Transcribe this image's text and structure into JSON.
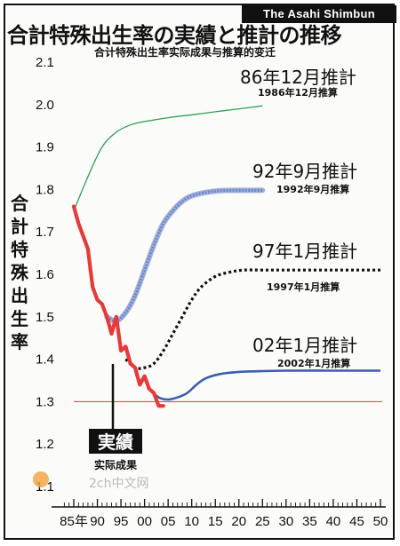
{
  "brand": "The Asahi Shimbun",
  "title": "合計特殊出生率の実績と推計の推移",
  "subtitle": "合计特殊出生率实际成果与推算的变迁",
  "watermark": "2ch中文网",
  "colors": {
    "actual": "#e8393a",
    "est1986": "#2ea05a",
    "est1992": "#6f86c6",
    "est1997": "#111111",
    "est2002": "#3b5fae",
    "ref": "#d9534f"
  },
  "chart_data": {
    "type": "line",
    "ylabel": "合計特殊出生率",
    "ylim": [
      1.1,
      2.1
    ],
    "xlim": [
      1985,
      2050
    ],
    "y_ticks": [
      "2.1",
      "2.0",
      "1.9",
      "1.8",
      "1.7",
      "1.6",
      "1.5",
      "1.4",
      "1.3",
      "1.2",
      "1.1"
    ],
    "x_ticks": [
      "85年",
      "90",
      "95",
      "00",
      "05",
      "10",
      "15",
      "20",
      "25",
      "30",
      "35",
      "40",
      "45",
      "50"
    ],
    "reference_line": 1.3,
    "series": [
      {
        "name": "実績",
        "sublabel": "实际成果",
        "x": [
          1985,
          1986,
          1987,
          1988,
          1989,
          1990,
          1991,
          1992,
          1993,
          1994,
          1995,
          1996,
          1997,
          1998,
          1999,
          2000,
          2001,
          2002,
          2003,
          2004
        ],
        "values": [
          1.76,
          1.72,
          1.69,
          1.66,
          1.57,
          1.54,
          1.53,
          1.5,
          1.46,
          1.5,
          1.42,
          1.43,
          1.39,
          1.38,
          1.34,
          1.36,
          1.33,
          1.32,
          1.29,
          1.29
        ]
      },
      {
        "name": "86年12月推計",
        "sublabel": "1986年12月推算",
        "x": [
          1985,
          1988,
          1991,
          1994,
          1997,
          2000,
          2005,
          2010,
          2015,
          2020,
          2025
        ],
        "values": [
          1.75,
          1.83,
          1.9,
          1.935,
          1.952,
          1.96,
          1.969,
          1.976,
          1.983,
          1.99,
          1.997
        ]
      },
      {
        "name": "92年9月推計",
        "sublabel": "1992年9月推算",
        "x": [
          1992,
          1994,
          1996,
          1998,
          2000,
          2002,
          2004,
          2006,
          2008,
          2010,
          2013,
          2016,
          2020,
          2025
        ],
        "values": [
          1.5,
          1.49,
          1.51,
          1.55,
          1.61,
          1.67,
          1.72,
          1.75,
          1.772,
          1.785,
          1.793,
          1.797,
          1.798,
          1.798
        ]
      },
      {
        "name": "97年1月推計",
        "sublabel": "1997年1月推算",
        "x": [
          1996,
          1998,
          2000,
          2002,
          2004,
          2006,
          2008,
          2010,
          2012,
          2015,
          2018,
          2021,
          2025,
          2030,
          2040,
          2050
        ],
        "values": [
          1.4,
          1.38,
          1.38,
          1.39,
          1.42,
          1.46,
          1.5,
          1.54,
          1.57,
          1.595,
          1.605,
          1.61,
          1.61,
          1.61,
          1.61,
          1.61
        ]
      },
      {
        "name": "02年1月推計",
        "sublabel": "2002年1月推算",
        "x": [
          2001,
          2003,
          2005,
          2007,
          2009,
          2011,
          2013,
          2016,
          2020,
          2025,
          2030,
          2040,
          2050
        ],
        "values": [
          1.33,
          1.31,
          1.305,
          1.31,
          1.32,
          1.34,
          1.355,
          1.365,
          1.37,
          1.372,
          1.373,
          1.373,
          1.373
        ]
      }
    ]
  }
}
